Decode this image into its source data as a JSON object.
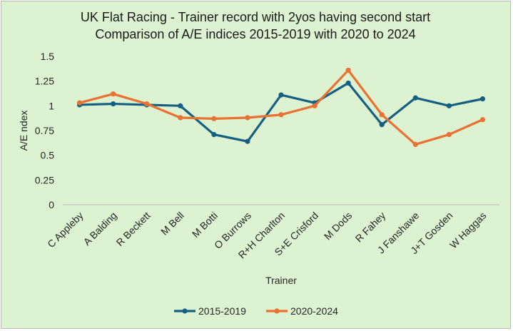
{
  "chart_data": {
    "type": "line",
    "title": "UK Flat Racing - Trainer record with 2yos having second start",
    "subtitle": "Comparison of A/E indices 2015-2019 with 2020 to 2024",
    "xlabel": "Trainer",
    "ylabel": "A/E ndex",
    "ylim": [
      0,
      1.5
    ],
    "yticks": [
      "0",
      "0.25",
      "0.5",
      "0.75",
      "1",
      "1.25",
      "1.5"
    ],
    "grid": false,
    "legend_position": "bottom",
    "categories": [
      "C Appleby",
      "A Balding",
      "R Beckett",
      "M Bell",
      "M Botti",
      "O Burrows",
      "R+H Charlton",
      "S+E Crisford",
      "M Dods",
      "R Fahey",
      "J Fanshawe",
      "J+T Gosden",
      "W Haggas"
    ],
    "series": [
      {
        "name": "2015-2019",
        "color": "#156082",
        "values": [
          1.01,
          1.02,
          1.01,
          1.0,
          0.71,
          0.64,
          1.11,
          1.03,
          1.23,
          0.81,
          1.08,
          1.0,
          1.07
        ]
      },
      {
        "name": "2020-2024",
        "color": "#e97132",
        "values": [
          1.03,
          1.12,
          1.02,
          0.88,
          0.87,
          0.88,
          0.91,
          1.0,
          1.36,
          0.91,
          0.61,
          0.71,
          0.86
        ]
      }
    ]
  }
}
